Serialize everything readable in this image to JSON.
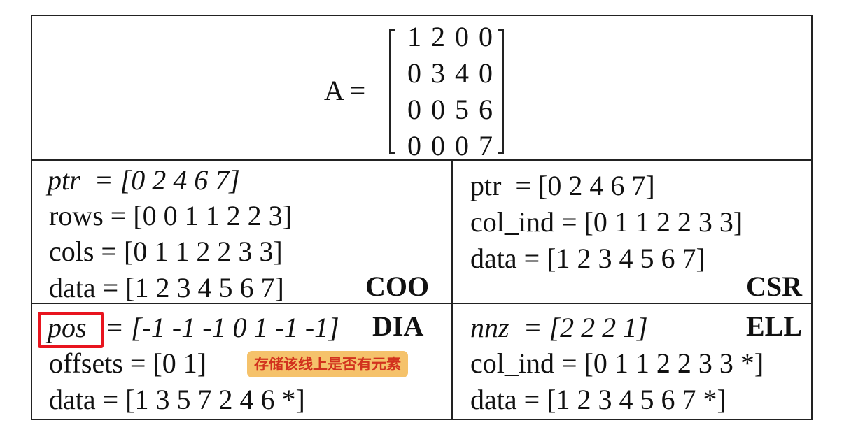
{
  "matrix": {
    "label": "A =",
    "rows": [
      "1 2 0 0",
      "0 3 4 0",
      "0 0 5 6",
      "0 0 0 7"
    ]
  },
  "coo": {
    "ptr": "ptr  = [0 2 4 6 7]",
    "rows": "rows = [0 0 1 1 2 2 3]",
    "cols": "cols = [0 1 1 2 2 3 3]",
    "data": "data = [1 2 3 4 5 6 7]",
    "title": "COO"
  },
  "csr": {
    "ptr": "ptr  = [0 2 4 6 7]",
    "col_ind": "col_ind = [0 1 1 2 2 3 3]",
    "data": "data = [1 2 3 4 5 6 7]",
    "title": "CSR"
  },
  "dia": {
    "pos_label": "pos",
    "pos_rest": " = [-1 -1 -1 0 1 -1 -1]",
    "title": "DIA",
    "offsets": "offsets = [0 1]",
    "data": "data = [1 3 5 7 2 4 6 *]",
    "note": "存储该线上是否有元素"
  },
  "ell": {
    "nnz": "nnz  = [2 2 2 1]",
    "title": "ELL",
    "col_ind": "col_ind = [0 1 1 2 2 3 3 *]",
    "data": "data = [1 2 3 4 5 6 7 *]"
  },
  "colors": {
    "highlight": "#e8141e",
    "note_bg": "#f5c26b",
    "note_text": "#d2321e"
  }
}
